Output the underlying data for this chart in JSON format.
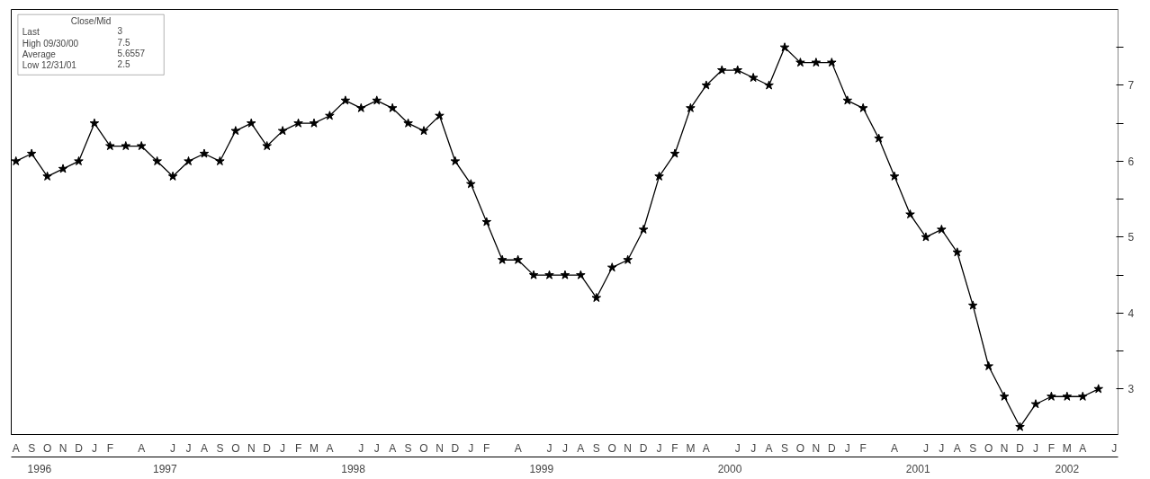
{
  "chart_data": {
    "type": "line",
    "categories": [
      "A",
      "S",
      "O",
      "N",
      "D",
      "J",
      "F",
      null,
      "A",
      null,
      "J",
      "J",
      "A",
      "S",
      "O",
      "N",
      "D",
      "J",
      "F",
      "M",
      "A",
      null,
      "J",
      "J",
      "A",
      "S",
      "O",
      "N",
      "D",
      "J",
      "F",
      null,
      "A",
      null,
      "J",
      "J",
      "A",
      "S",
      "O",
      "N",
      "D",
      "J",
      "F",
      "M",
      "A",
      null,
      "J",
      "J",
      "A",
      "S",
      "O",
      "N",
      "D",
      "J",
      "F",
      null,
      "A",
      null,
      "J",
      "J",
      "A",
      "S",
      "O",
      "N",
      "D",
      "J",
      "F",
      "M",
      "A",
      null,
      "J"
    ],
    "series": [
      {
        "color": "#000000",
        "values": [
          6.0,
          6.1,
          5.8,
          5.9,
          6.0,
          6.5,
          6.2,
          6.2,
          6.2,
          6.0,
          5.8,
          6.0,
          6.1,
          6.0,
          6.4,
          6.5,
          6.2,
          6.4,
          6.5,
          6.5,
          6.6,
          6.8,
          6.7,
          6.8,
          6.7,
          6.5,
          6.4,
          6.6,
          6.0,
          5.7,
          5.2,
          4.7,
          4.7,
          4.5,
          4.5,
          4.5,
          4.5,
          4.2,
          4.6,
          4.7,
          5.1,
          5.8,
          6.1,
          6.7,
          7.0,
          7.2,
          7.2,
          7.1,
          7.0,
          7.5,
          7.3,
          7.3,
          7.3,
          6.8,
          6.7,
          6.3,
          5.8,
          5.3,
          5.0,
          5.1,
          4.8,
          4.1,
          3.3,
          2.9,
          2.5,
          2.8,
          2.9,
          2.9,
          2.9,
          3.0,
          null
        ]
      }
    ],
    "marker": "star",
    "line_style": "solid",
    "ylim": [
      2.4,
      8.0
    ],
    "yticks": [
      3,
      {
        "value": 3.5,
        "label": null
      },
      4,
      {
        "value": 4.5,
        "label": null
      },
      5,
      {
        "value": 5.5,
        "label": null
      },
      6,
      {
        "value": 6.5,
        "label": null
      },
      7,
      {
        "value": 7.5,
        "label": null
      }
    ],
    "tick_labels": "xy",
    "annotations": [
      "Close/Mid",
      "Last",
      "3",
      "High 09/30/00",
      "7.5",
      "Average",
      "5.6557",
      "Low 12/31/01",
      "2.5",
      "1996",
      "1997",
      "1998",
      "1999",
      "2000",
      "2001",
      "2002"
    ]
  }
}
